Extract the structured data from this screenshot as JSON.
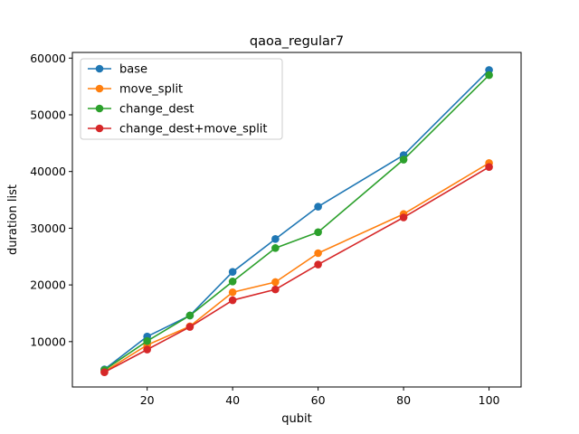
{
  "chart_data": {
    "type": "line",
    "title": "qaoa_regular7",
    "xlabel": "qubit",
    "ylabel": "duration list",
    "x": [
      10,
      20,
      30,
      40,
      50,
      60,
      80,
      100
    ],
    "xlim": [
      2.5,
      107.5
    ],
    "ylim": [
      2000,
      61000
    ],
    "xticks": [
      20,
      40,
      60,
      80,
      100
    ],
    "yticks": [
      10000,
      20000,
      30000,
      40000,
      50000,
      60000
    ],
    "legend_position": "top-left",
    "series": [
      {
        "name": "base",
        "color": "#1f77b4",
        "values": [
          5100,
          10900,
          14600,
          22300,
          28100,
          33800,
          42900,
          57900
        ]
      },
      {
        "name": "move_split",
        "color": "#ff7f0e",
        "values": [
          4700,
          9400,
          12700,
          18700,
          20500,
          25600,
          32500,
          41500
        ]
      },
      {
        "name": "change_dest",
        "color": "#2ca02c",
        "values": [
          5000,
          10100,
          14600,
          20600,
          26500,
          29300,
          42100,
          57000
        ]
      },
      {
        "name": "change_dest+move_split",
        "color": "#d62728",
        "values": [
          4600,
          8600,
          12600,
          17300,
          19200,
          23600,
          31900,
          40800
        ]
      }
    ]
  }
}
